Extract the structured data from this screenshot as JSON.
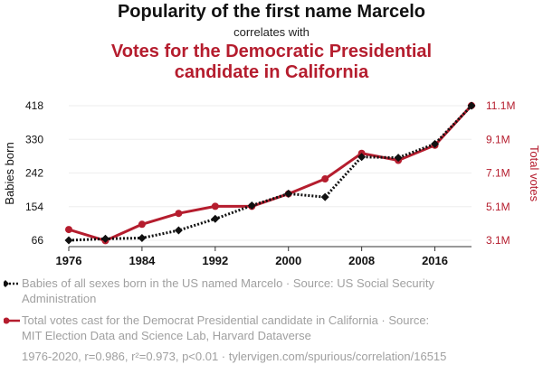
{
  "header": {
    "title": "Popularity of the first name Marcelo",
    "connector": "correlates with",
    "subtitle_line1": "Votes for the Democratic Presidential",
    "subtitle_line2": "candidate in California"
  },
  "chart_data": {
    "type": "line",
    "x": [
      1976,
      1980,
      1984,
      1988,
      1992,
      1996,
      2000,
      2004,
      2008,
      2012,
      2016,
      2020
    ],
    "xticks": [
      1976,
      1984,
      1992,
      2000,
      2008,
      2016
    ],
    "xlim": [
      1976,
      2020
    ],
    "left_axis": {
      "label": "Babies born",
      "ticks": [
        "418",
        "330",
        "242",
        "154",
        "66"
      ],
      "ylim": [
        66,
        418
      ],
      "color": "#111111"
    },
    "right_axis": {
      "label": "Total votes",
      "ticks": [
        "11.1M",
        "9.1M",
        "7.1M",
        "5.1M",
        "3.1M"
      ],
      "ylim": [
        3.1,
        11.1
      ],
      "unit": "M",
      "color": "#b51d2e"
    },
    "series": [
      {
        "name": "Babies of all sexes born in the US named Marcelo",
        "axis": "left",
        "color": "#111111",
        "style": "dotted",
        "marker": "diamond",
        "values": [
          66,
          70,
          72,
          92,
          122,
          157,
          188,
          179,
          284,
          282,
          318,
          418
        ]
      },
      {
        "name": "Total votes cast for the Democrat Presidential candidate in California",
        "axis": "right",
        "color": "#b51d2e",
        "style": "solid",
        "marker": "circle",
        "values": [
          3.74,
          3.08,
          4.05,
          4.7,
          5.12,
          5.12,
          5.86,
          6.75,
          8.27,
          7.85,
          8.75,
          11.11
        ]
      }
    ]
  },
  "legend": {
    "item1": "Babies of all sexes born in the US named Marcelo · Source: US Social Security Administration",
    "item2": "Total votes cast for the Democrat Presidential candidate in California · Source: MIT Election Data and Science Lab, Harvard Dataverse"
  },
  "footer": "1976-2020, r=0.986, r²=0.973, p<0.01 · tylervigen.com/spurious/correlation/16515"
}
